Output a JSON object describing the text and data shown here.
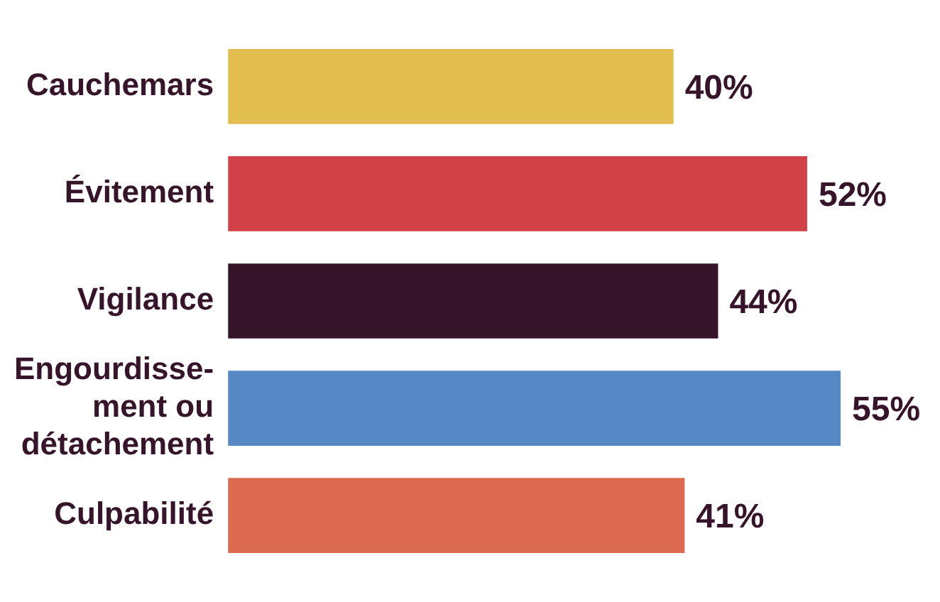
{
  "chart_data": {
    "type": "bar",
    "orientation": "horizontal",
    "categories": [
      "Cauchemars",
      "Évitement",
      "Vigilance",
      "Engourdisse-\nment ou\ndétachement",
      "Culpabilité"
    ],
    "values": [
      40,
      52,
      44,
      55,
      41
    ],
    "colors": [
      "#e2be50",
      "#d24048",
      "#36142a",
      "#5588c4",
      "#dc6a50"
    ],
    "value_labels": [
      "40%",
      "52%",
      "44%",
      "55%",
      "41%"
    ],
    "legend": false
  }
}
